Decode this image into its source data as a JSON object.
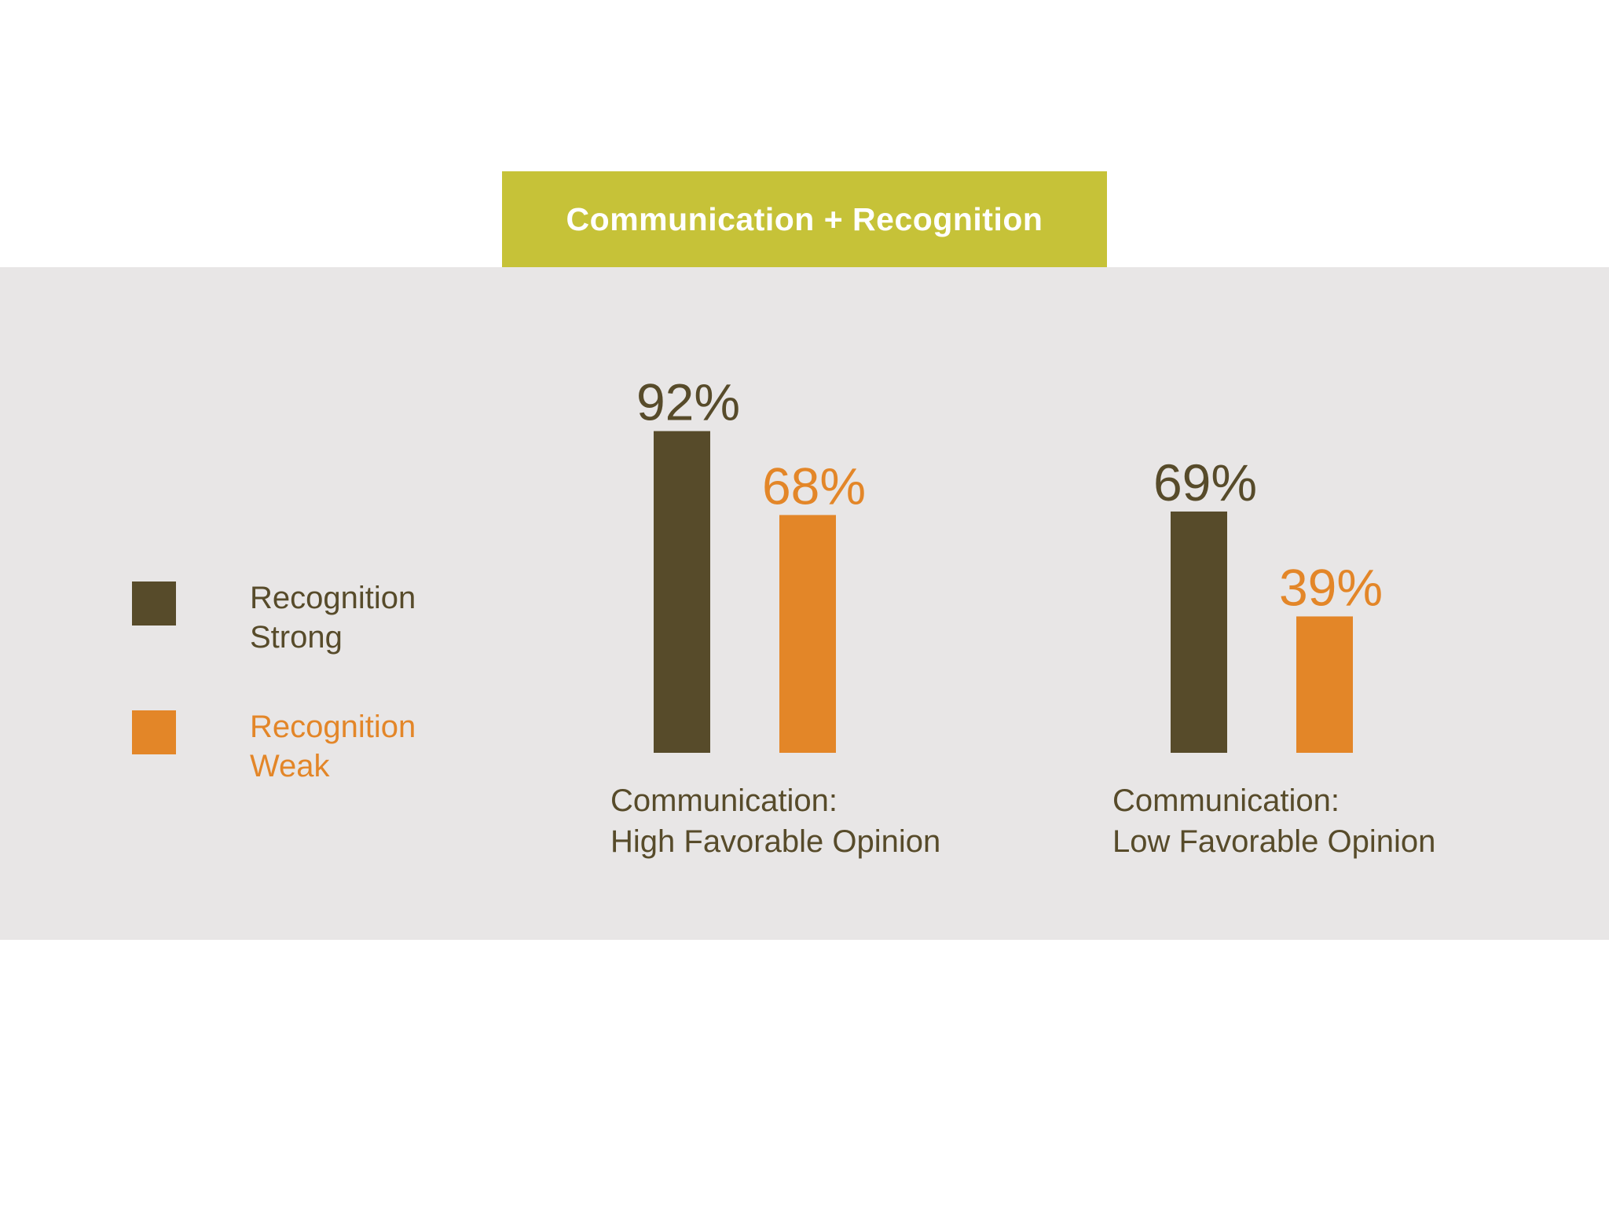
{
  "title": "Communication + Recognition",
  "colors": {
    "strong": "#574b2a",
    "weak": "#e38628",
    "banner": "#c6c238",
    "panel": "#e8e6e6"
  },
  "legend": [
    {
      "label": "Recognition\nStrong",
      "color": "#574b2a"
    },
    {
      "label": "Recognition\nWeak",
      "color": "#e38628"
    }
  ],
  "chart_data": {
    "type": "bar",
    "title": "Communication + Recognition",
    "categories": [
      [
        "Communication:",
        "High Favorable Opinion"
      ],
      [
        "Communication:",
        "Low Favorable Opinion"
      ]
    ],
    "series": [
      {
        "name": "Recognition Strong",
        "values": [
          92,
          69
        ],
        "labels": [
          "92%",
          "69%"
        ],
        "color": "#574b2a"
      },
      {
        "name": "Recognition Weak",
        "values": [
          68,
          39
        ],
        "labels": [
          "68%",
          "39%"
        ],
        "color": "#e38628"
      }
    ],
    "ylim": [
      0,
      100
    ],
    "grid": false,
    "legend_position": "left"
  }
}
